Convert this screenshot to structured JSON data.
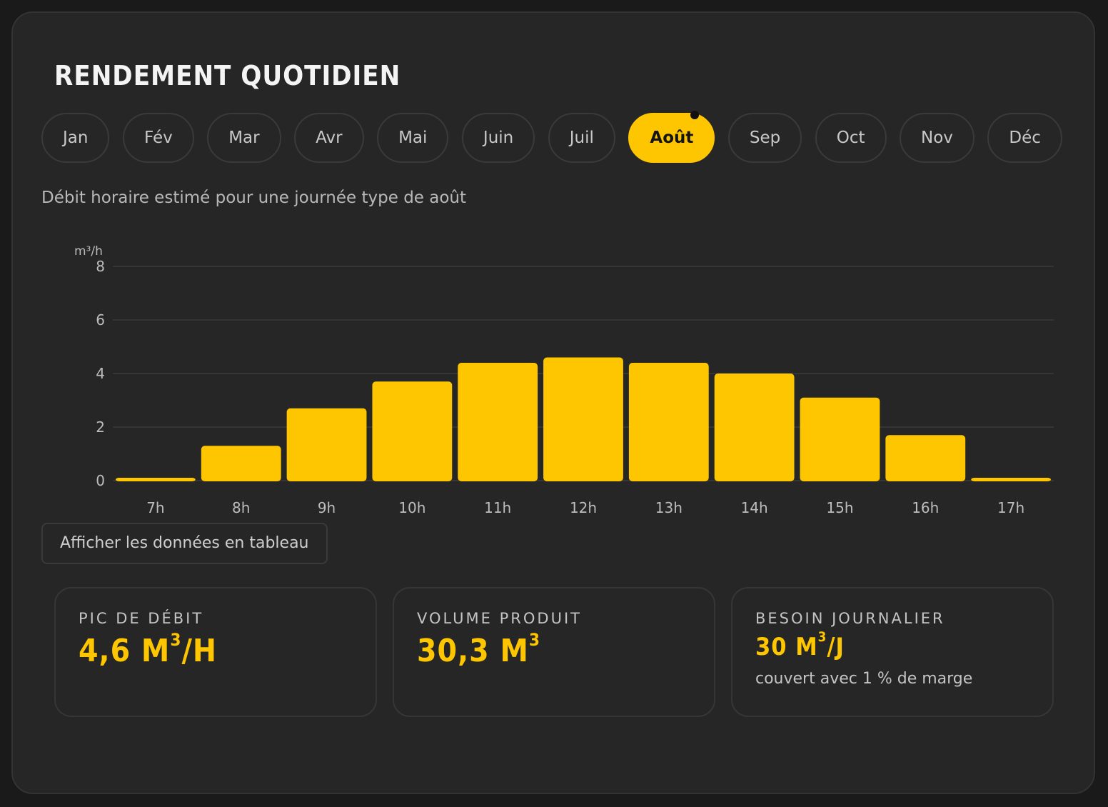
{
  "title": "RENDEMENT QUOTIDIEN",
  "months": [
    "Jan",
    "Fév",
    "Mar",
    "Avr",
    "Mai",
    "Juin",
    "Juil",
    "Août",
    "Sep",
    "Oct",
    "Nov",
    "Déc"
  ],
  "selected_month": "Août",
  "subtitle": "Débit horaire estimé pour une journée type de août",
  "table_button": "Afficher les données en tableau",
  "stats": {
    "peak": {
      "label": "PIC DE DÉBIT",
      "number": "4,6 M",
      "unit_sup": "3",
      "unit_after": "/H"
    },
    "volume": {
      "label": "VOLUME PRODUIT",
      "number": "30,3 M",
      "unit_sup": "3",
      "unit_after": ""
    },
    "need": {
      "label": "BESOIN JOURNALIER",
      "number": "30 M",
      "unit_sup": "3",
      "unit_after": "/J",
      "note": "couvert avec 1 % de marge"
    }
  },
  "colors": {
    "accent": "#fec600",
    "background": "#262626",
    "grid": "#3a3a3a"
  },
  "chart_data": {
    "type": "bar",
    "categories": [
      "7h",
      "8h",
      "9h",
      "10h",
      "11h",
      "12h",
      "13h",
      "14h",
      "15h",
      "16h",
      "17h"
    ],
    "values": [
      0.1,
      1.3,
      2.7,
      3.7,
      4.4,
      4.6,
      4.4,
      4.0,
      3.1,
      1.7,
      0.1
    ],
    "ylabel": "m³/h",
    "ylim": [
      0,
      8
    ],
    "yticks": [
      0,
      2,
      4,
      6,
      8
    ],
    "grid": true,
    "color": "#fec600"
  }
}
